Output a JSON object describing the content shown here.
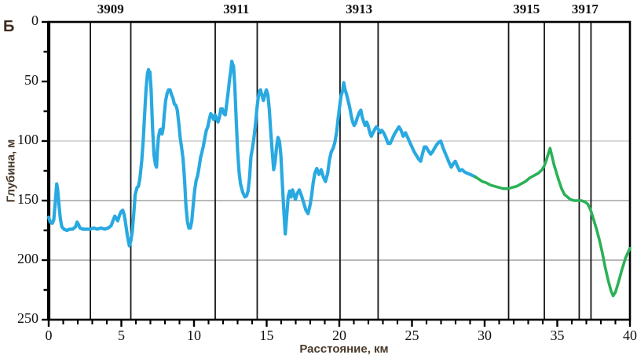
{
  "panel_label": "Б",
  "chart_data": {
    "type": "line",
    "title": "",
    "xlabel": "Расстояние, км",
    "ylabel": "Глубина, м",
    "x_range": [
      0,
      40
    ],
    "y_range": [
      0,
      250
    ],
    "y_inverted": true,
    "x_major_ticks": [
      0,
      5,
      10,
      15,
      20,
      25,
      30,
      35,
      40
    ],
    "x_minor_step": 1,
    "y_major_ticks": [
      0,
      50,
      100,
      150,
      200,
      250
    ],
    "y_minor_step": 25,
    "grid": "horizontal-only",
    "gridlines": [
      {
        "depth": 100,
        "color": "#c2c2c2"
      },
      {
        "depth": 150,
        "color": "#8f8f8f"
      },
      {
        "depth": 200,
        "color": "#8f8f8f"
      }
    ],
    "stations": [
      {
        "label": "3909",
        "lines_km": [
          2.87,
          5.65
        ]
      },
      {
        "label": "3911",
        "lines_km": [
          11.46,
          14.35
        ]
      },
      {
        "label": "3913",
        "lines_km": [
          20.05,
          22.67
        ]
      },
      {
        "label": "3915",
        "lines_km": [
          31.65,
          34.11
        ]
      },
      {
        "label": "3917",
        "lines_km": [
          36.51,
          37.32
        ]
      }
    ],
    "axis_color": "#000000",
    "legend": "none",
    "series": [
      {
        "name": "depth-profile-measured",
        "color": "#29a9e1",
        "width": 4.2,
        "points": [
          [
            0,
            164
          ],
          [
            0.1,
            168
          ],
          [
            0.25,
            169
          ],
          [
            0.35,
            166
          ],
          [
            0.45,
            152
          ],
          [
            0.55,
            136
          ],
          [
            0.62,
            141
          ],
          [
            0.7,
            153
          ],
          [
            0.8,
            165
          ],
          [
            0.9,
            172
          ],
          [
            1.05,
            174
          ],
          [
            1.25,
            175
          ],
          [
            1.45,
            174
          ],
          [
            1.65,
            174
          ],
          [
            1.85,
            172
          ],
          [
            1.95,
            168
          ],
          [
            2.05,
            170
          ],
          [
            2.15,
            173
          ],
          [
            2.35,
            174
          ],
          [
            2.6,
            174
          ],
          [
            2.85,
            174
          ],
          [
            3.1,
            173
          ],
          [
            3.35,
            174
          ],
          [
            3.6,
            173
          ],
          [
            3.85,
            174
          ],
          [
            4.1,
            173
          ],
          [
            4.3,
            171
          ],
          [
            4.45,
            166
          ],
          [
            4.55,
            163
          ],
          [
            4.65,
            165
          ],
          [
            4.75,
            167
          ],
          [
            4.88,
            162
          ],
          [
            5.0,
            159
          ],
          [
            5.1,
            158
          ],
          [
            5.2,
            162
          ],
          [
            5.3,
            170
          ],
          [
            5.42,
            180
          ],
          [
            5.55,
            188
          ],
          [
            5.65,
            184
          ],
          [
            5.75,
            176
          ],
          [
            5.85,
            162
          ],
          [
            5.95,
            145
          ],
          [
            6.08,
            139
          ],
          [
            6.18,
            138
          ],
          [
            6.28,
            131
          ],
          [
            6.4,
            117
          ],
          [
            6.5,
            100
          ],
          [
            6.6,
            78
          ],
          [
            6.7,
            57
          ],
          [
            6.8,
            43
          ],
          [
            6.87,
            40
          ],
          [
            6.92,
            44
          ],
          [
            6.97,
            42
          ],
          [
            7.05,
            57
          ],
          [
            7.15,
            90
          ],
          [
            7.25,
            112
          ],
          [
            7.35,
            120
          ],
          [
            7.42,
            122
          ],
          [
            7.48,
            108
          ],
          [
            7.55,
            97
          ],
          [
            7.65,
            91
          ],
          [
            7.72,
            90
          ],
          [
            7.8,
            94
          ],
          [
            7.88,
            89
          ],
          [
            7.95,
            78
          ],
          [
            8.05,
            66
          ],
          [
            8.15,
            60
          ],
          [
            8.25,
            57
          ],
          [
            8.35,
            57
          ],
          [
            8.45,
            61
          ],
          [
            8.55,
            64
          ],
          [
            8.65,
            69
          ],
          [
            8.75,
            70
          ],
          [
            8.85,
            74
          ],
          [
            8.95,
            85
          ],
          [
            9.05,
            97
          ],
          [
            9.15,
            106
          ],
          [
            9.25,
            115
          ],
          [
            9.35,
            133
          ],
          [
            9.45,
            155
          ],
          [
            9.55,
            168
          ],
          [
            9.65,
            173
          ],
          [
            9.75,
            173
          ],
          [
            9.85,
            167
          ],
          [
            9.95,
            153
          ],
          [
            10.05,
            141
          ],
          [
            10.15,
            133
          ],
          [
            10.25,
            129
          ],
          [
            10.35,
            122
          ],
          [
            10.45,
            114
          ],
          [
            10.55,
            109
          ],
          [
            10.65,
            104
          ],
          [
            10.75,
            97
          ],
          [
            10.85,
            91
          ],
          [
            10.95,
            88
          ],
          [
            11.05,
            82
          ],
          [
            11.15,
            77
          ],
          [
            11.25,
            79
          ],
          [
            11.35,
            82
          ],
          [
            11.45,
            78
          ],
          [
            11.55,
            81
          ],
          [
            11.65,
            84
          ],
          [
            11.75,
            80
          ],
          [
            11.85,
            73
          ],
          [
            11.95,
            73
          ],
          [
            12.05,
            77
          ],
          [
            12.15,
            78
          ],
          [
            12.25,
            69
          ],
          [
            12.35,
            59
          ],
          [
            12.45,
            48
          ],
          [
            12.52,
            42
          ],
          [
            12.6,
            33
          ],
          [
            12.67,
            36
          ],
          [
            12.72,
            37
          ],
          [
            12.8,
            52
          ],
          [
            12.9,
            80
          ],
          [
            13.0,
            108
          ],
          [
            13.1,
            126
          ],
          [
            13.2,
            136
          ],
          [
            13.35,
            143
          ],
          [
            13.5,
            147
          ],
          [
            13.62,
            146
          ],
          [
            13.72,
            142
          ],
          [
            13.82,
            131
          ],
          [
            13.92,
            113
          ],
          [
            14.02,
            106
          ],
          [
            14.12,
            98
          ],
          [
            14.22,
            87
          ],
          [
            14.32,
            74
          ],
          [
            14.42,
            63
          ],
          [
            14.5,
            58
          ],
          [
            14.58,
            57
          ],
          [
            14.68,
            62
          ],
          [
            14.78,
            66
          ],
          [
            14.88,
            61
          ],
          [
            14.98,
            57
          ],
          [
            15.08,
            61
          ],
          [
            15.18,
            73
          ],
          [
            15.28,
            92
          ],
          [
            15.38,
            108
          ],
          [
            15.48,
            124
          ],
          [
            15.58,
            118
          ],
          [
            15.68,
            105
          ],
          [
            15.78,
            97
          ],
          [
            15.88,
            100
          ],
          [
            15.98,
            112
          ],
          [
            16.08,
            136
          ],
          [
            16.18,
            158
          ],
          [
            16.28,
            178
          ],
          [
            16.38,
            163
          ],
          [
            16.48,
            147
          ],
          [
            16.58,
            142
          ],
          [
            16.68,
            147
          ],
          [
            16.78,
            141
          ],
          [
            16.88,
            145
          ],
          [
            16.98,
            149
          ],
          [
            17.1,
            144
          ],
          [
            17.25,
            141
          ],
          [
            17.4,
            146
          ],
          [
            17.55,
            152
          ],
          [
            17.7,
            158
          ],
          [
            17.85,
            161
          ],
          [
            18.0,
            153
          ],
          [
            18.1,
            145
          ],
          [
            18.2,
            135
          ],
          [
            18.32,
            127
          ],
          [
            18.45,
            123
          ],
          [
            18.6,
            128
          ],
          [
            18.75,
            124
          ],
          [
            18.9,
            130
          ],
          [
            19.05,
            134
          ],
          [
            19.2,
            127
          ],
          [
            19.32,
            116
          ],
          [
            19.45,
            109
          ],
          [
            19.58,
            106
          ],
          [
            19.7,
            101
          ],
          [
            19.82,
            92
          ],
          [
            19.92,
            81
          ],
          [
            20.02,
            71
          ],
          [
            20.12,
            62
          ],
          [
            20.22,
            58
          ],
          [
            20.3,
            51
          ],
          [
            20.4,
            57
          ],
          [
            20.5,
            61
          ],
          [
            20.62,
            67
          ],
          [
            20.72,
            72
          ],
          [
            20.82,
            79
          ],
          [
            20.92,
            84
          ],
          [
            21.02,
            87
          ],
          [
            21.12,
            85
          ],
          [
            21.25,
            80
          ],
          [
            21.38,
            76
          ],
          [
            21.48,
            74
          ],
          [
            21.58,
            80
          ],
          [
            21.68,
            84
          ],
          [
            21.78,
            87
          ],
          [
            21.88,
            84
          ],
          [
            21.98,
            87
          ],
          [
            22.1,
            93
          ],
          [
            22.2,
            96
          ],
          [
            22.32,
            93
          ],
          [
            22.45,
            90
          ],
          [
            22.55,
            88
          ],
          [
            22.68,
            90
          ],
          [
            22.8,
            93
          ],
          [
            22.92,
            91
          ],
          [
            23.05,
            93
          ],
          [
            23.2,
            97
          ],
          [
            23.35,
            102
          ],
          [
            23.5,
            102
          ],
          [
            23.65,
            98
          ],
          [
            23.8,
            94
          ],
          [
            23.95,
            91
          ],
          [
            24.1,
            88
          ],
          [
            24.25,
            91
          ],
          [
            24.4,
            96
          ],
          [
            24.55,
            93
          ],
          [
            24.7,
            97
          ],
          [
            24.85,
            101
          ],
          [
            25.0,
            105
          ],
          [
            25.15,
            109
          ],
          [
            25.3,
            112
          ],
          [
            25.45,
            115
          ],
          [
            25.6,
            117
          ],
          [
            25.72,
            111
          ],
          [
            25.85,
            105
          ],
          [
            25.98,
            105
          ],
          [
            26.12,
            108
          ],
          [
            26.28,
            111
          ],
          [
            26.42,
            109
          ],
          [
            26.55,
            106
          ],
          [
            26.7,
            103
          ],
          [
            26.85,
            101
          ],
          [
            26.98,
            100
          ],
          [
            27.12,
            105
          ],
          [
            27.28,
            110
          ],
          [
            27.42,
            114
          ],
          [
            27.55,
            118
          ],
          [
            27.7,
            122
          ],
          [
            27.85,
            119
          ],
          [
            27.98,
            117
          ],
          [
            28.12,
            121
          ],
          [
            28.28,
            125
          ],
          [
            28.45,
            124
          ],
          [
            28.62,
            126
          ],
          [
            28.8,
            127
          ],
          [
            29.0,
            128
          ],
          [
            29.18,
            129
          ],
          [
            29.35,
            130
          ]
        ]
      },
      {
        "name": "depth-profile-extension",
        "color": "#2bb156",
        "width": 3.6,
        "points": [
          [
            29.35,
            130
          ],
          [
            29.6,
            132
          ],
          [
            29.85,
            134
          ],
          [
            30.1,
            135
          ],
          [
            30.4,
            137
          ],
          [
            30.7,
            138
          ],
          [
            31.0,
            139
          ],
          [
            31.3,
            140
          ],
          [
            31.6,
            140
          ],
          [
            31.9,
            139
          ],
          [
            32.2,
            138
          ],
          [
            32.5,
            136
          ],
          [
            32.8,
            134
          ],
          [
            33.1,
            131
          ],
          [
            33.4,
            129
          ],
          [
            33.7,
            127
          ],
          [
            33.95,
            124
          ],
          [
            34.1,
            121
          ],
          [
            34.25,
            116
          ],
          [
            34.4,
            110
          ],
          [
            34.5,
            106
          ],
          [
            34.62,
            112
          ],
          [
            34.78,
            120
          ],
          [
            34.95,
            127
          ],
          [
            35.1,
            133
          ],
          [
            35.3,
            140
          ],
          [
            35.5,
            145
          ],
          [
            35.7,
            147
          ],
          [
            35.9,
            149
          ],
          [
            36.15,
            150
          ],
          [
            36.4,
            150
          ],
          [
            36.65,
            150
          ],
          [
            36.9,
            151
          ],
          [
            37.1,
            153
          ],
          [
            37.3,
            158
          ],
          [
            37.5,
            166
          ],
          [
            37.7,
            174
          ],
          [
            37.9,
            183
          ],
          [
            38.1,
            194
          ],
          [
            38.3,
            206
          ],
          [
            38.5,
            217
          ],
          [
            38.7,
            226
          ],
          [
            38.85,
            230
          ],
          [
            39.0,
            227
          ],
          [
            39.2,
            219
          ],
          [
            39.45,
            208
          ],
          [
            39.7,
            198
          ],
          [
            40.0,
            190
          ]
        ]
      }
    ]
  }
}
